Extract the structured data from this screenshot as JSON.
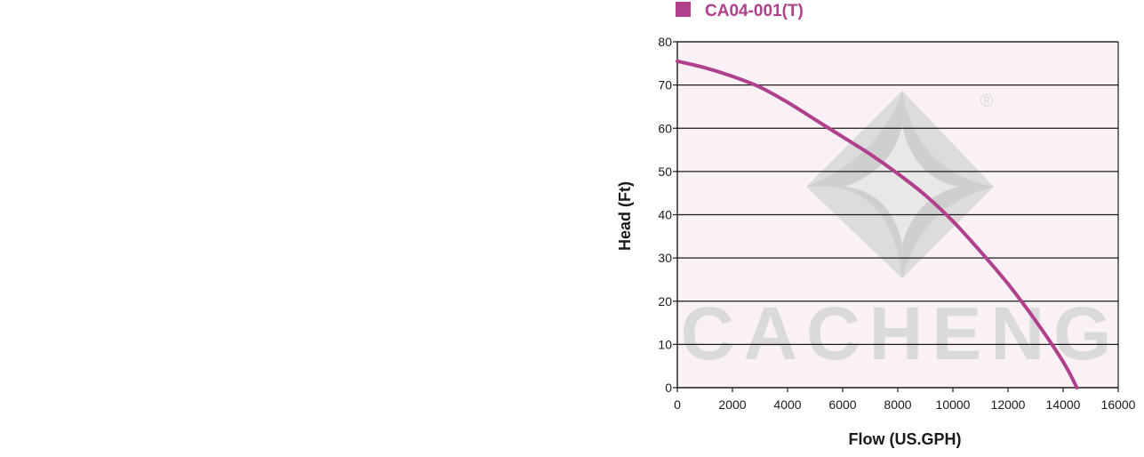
{
  "watermark": {
    "brand": "CACHENG",
    "registered_mark": "®"
  },
  "colors": {
    "series": "#b03f8c",
    "plot_background": "#f9f1f5",
    "gridline": "#1a1a1a",
    "watermark": "#dadada"
  },
  "chart_data": {
    "type": "line",
    "title": "",
    "xlabel": "Flow (US.GPH)",
    "ylabel": "Head (Ft)",
    "xlim": [
      0,
      16000
    ],
    "ylim": [
      0,
      80
    ],
    "xticks": [
      0,
      2000,
      4000,
      6000,
      8000,
      10000,
      12000,
      14000,
      16000
    ],
    "yticks": [
      0,
      10,
      20,
      30,
      40,
      50,
      60,
      70,
      80
    ],
    "grid": {
      "horizontal": true,
      "vertical": false
    },
    "legend": {
      "position": "top-left"
    },
    "series": [
      {
        "name": "CA04-001(T)",
        "color": "#b03f8c",
        "x": [
          0,
          1000,
          2000,
          3000,
          4000,
          5000,
          6000,
          7000,
          8000,
          9000,
          10000,
          11000,
          12000,
          13000,
          14000,
          14500
        ],
        "y": [
          75.5,
          74,
          72,
          69.5,
          66,
          62,
          58,
          54,
          49.5,
          44.5,
          38.5,
          31.5,
          24,
          15.5,
          6,
          0
        ]
      }
    ]
  }
}
